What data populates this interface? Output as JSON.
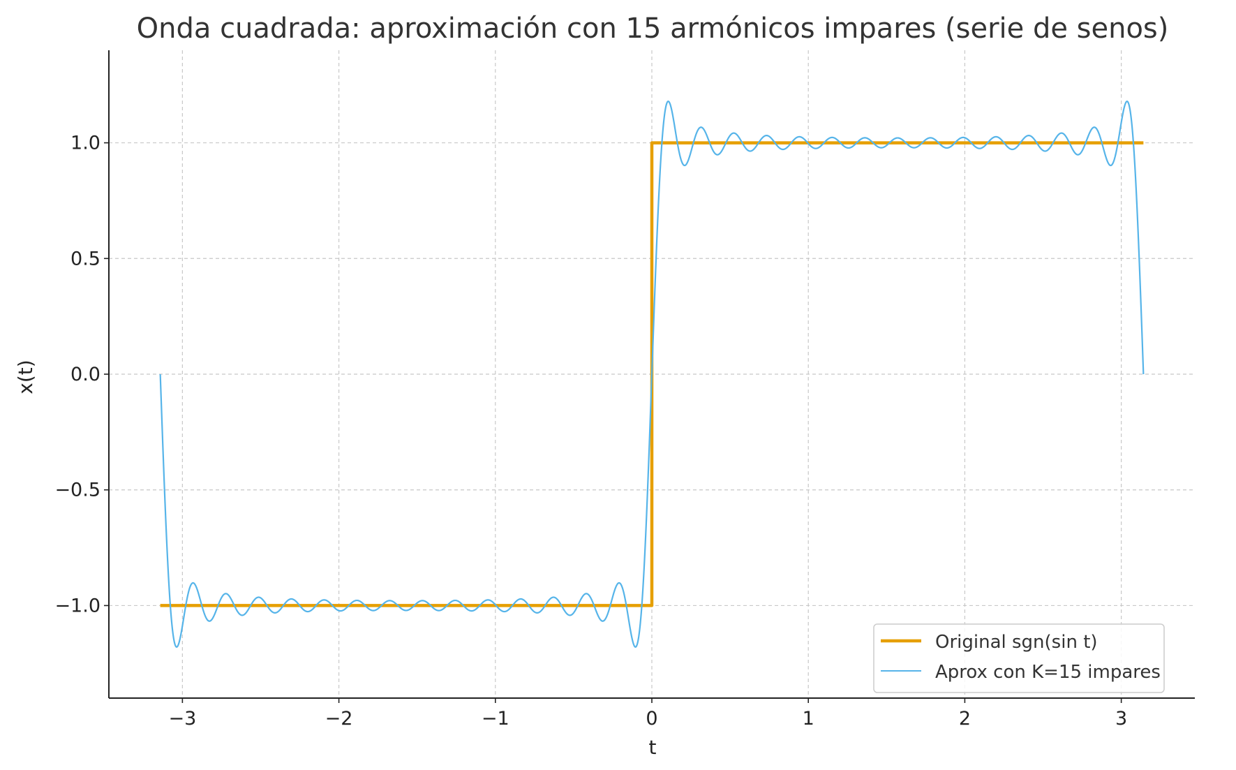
{
  "chart_data": {
    "type": "line",
    "title": "Onda cuadrada: aproximación con 15 armónicos impares (serie de senos)",
    "xlabel": "t",
    "ylabel": "x(t)",
    "xlim": [
      -3.47,
      3.47
    ],
    "ylim": [
      -1.4,
      1.4
    ],
    "x_ticks": [
      -3,
      -2,
      -1,
      0,
      1,
      2,
      3
    ],
    "x_tick_labels": [
      "−3",
      "−2",
      "−1",
      "0",
      "1",
      "2",
      "3"
    ],
    "y_ticks": [
      -1.0,
      -0.5,
      0.0,
      0.5,
      1.0
    ],
    "y_tick_labels": [
      "−1.0",
      "−0.5",
      "0.0",
      "0.5",
      "1.0"
    ],
    "grid": true,
    "legend_position": "lower-right",
    "series": [
      {
        "name": "Original sgn(sin t)",
        "color": "#E69F00",
        "kind": "step",
        "x": [
          -3.14159,
          0,
          0,
          3.14159
        ],
        "y": [
          -1,
          -1,
          1,
          1
        ]
      },
      {
        "name": "Aprox con K=15 impares",
        "color": "#56B4E9",
        "kind": "fourier",
        "x_range": [
          -3.14159,
          3.14159
        ],
        "harmonics": 15,
        "formula": "(4/π)·Σ sin((2k−1)t)/(2k−1), k=1..15"
      }
    ]
  }
}
